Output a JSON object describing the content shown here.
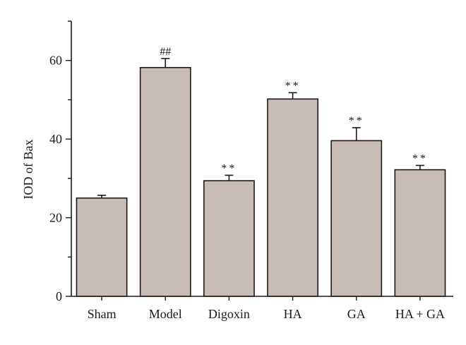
{
  "chart_data": {
    "type": "bar",
    "title": "",
    "xlabel": "",
    "ylabel": "IOD of Bax",
    "ylim": [
      0,
      70
    ],
    "yticks": [
      0,
      20,
      40,
      60
    ],
    "grid": false,
    "bar_color": "#c8bcb4",
    "edge_color": "#1a1a1a",
    "categories": [
      "Sham",
      "Model",
      "Digoxin",
      "HA",
      "GA",
      "HA + GA"
    ],
    "values": [
      25.0,
      58.2,
      29.4,
      50.2,
      39.6,
      32.2
    ],
    "errors": [
      0.7,
      2.3,
      1.4,
      1.6,
      3.3,
      1.1
    ],
    "annotations": [
      "",
      "##",
      "**",
      "**",
      "**",
      "**"
    ]
  }
}
